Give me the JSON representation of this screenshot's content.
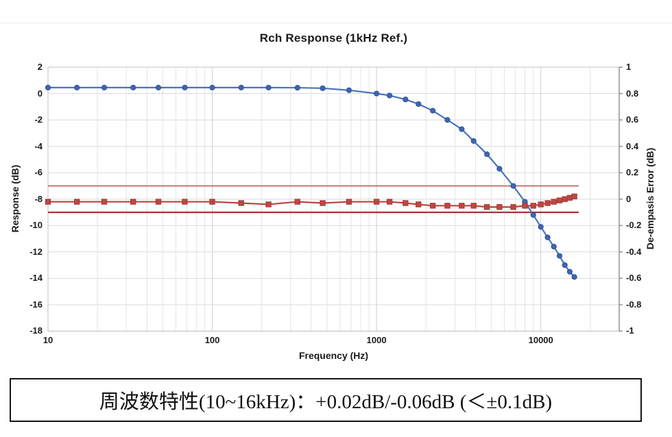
{
  "page": {
    "caption": "周波数特性(10~16kHz)：+0.02dB/-0.06dB (＜±0.1dB)"
  },
  "chart_data": {
    "type": "line",
    "title": "Rch Response (1kHz Ref.)",
    "xlabel": "Frequency (Hz)",
    "ylabel_left": "Response (dB)",
    "ylabel_right": "De-empasis Error (dB)",
    "x_scale": "log",
    "x_range": [
      10,
      30000
    ],
    "x_ticks": [
      {
        "value": 10,
        "label": "10"
      },
      {
        "value": 100,
        "label": "100"
      },
      {
        "value": 1000,
        "label": "1000"
      },
      {
        "value": 10000,
        "label": "10000"
      }
    ],
    "y_left_range": [
      -18,
      2
    ],
    "y_left_tick_step": 2,
    "y_left_ticks": [
      "2",
      "0",
      "-2",
      "-4",
      "-6",
      "-8",
      "-10",
      "-12",
      "-14",
      "-16",
      "-18"
    ],
    "y_right_range": [
      -1,
      1
    ],
    "y_right_tick_step": 0.2,
    "y_right_ticks": [
      "1",
      "0.8",
      "0.6",
      "0.4",
      "0.2",
      "0",
      "-0.2",
      "-0.4",
      "-0.6",
      "-0.8",
      "-1"
    ],
    "grid": true,
    "frequencies": [
      10,
      15,
      22,
      33,
      47,
      68,
      100,
      150,
      220,
      330,
      470,
      680,
      1000,
      1200,
      1500,
      1800,
      2200,
      2700,
      3300,
      3900,
      4700,
      5600,
      6800,
      8000,
      9000,
      10000,
      11000,
      12000,
      13000,
      14000,
      15000,
      16000
    ],
    "series": [
      {
        "name": "response",
        "axis": "left",
        "marker": "circle",
        "line_color": "#4a74b8",
        "marker_fill": "#3f66ad",
        "marker_stroke": "#2e53a0",
        "values": [
          0.45,
          0.45,
          0.45,
          0.45,
          0.45,
          0.45,
          0.45,
          0.45,
          0.45,
          0.44,
          0.4,
          0.25,
          0,
          -0.15,
          -0.45,
          -0.8,
          -1.3,
          -2.0,
          -2.7,
          -3.6,
          -4.6,
          -5.7,
          -7.0,
          -8.2,
          -9.2,
          -10.1,
          -10.9,
          -11.6,
          -12.3,
          -13.0,
          -13.5,
          -13.9
        ]
      },
      {
        "name": "de-emphasis-error",
        "axis": "right",
        "marker": "square",
        "line_color": "#b9423e",
        "marker_fill": "#be4743",
        "marker_stroke": "#a53a37",
        "values": [
          -0.02,
          -0.02,
          -0.02,
          -0.02,
          -0.02,
          -0.02,
          -0.02,
          -0.03,
          -0.04,
          -0.02,
          -0.03,
          -0.02,
          -0.02,
          -0.02,
          -0.03,
          -0.04,
          -0.05,
          -0.05,
          -0.05,
          -0.05,
          -0.06,
          -0.06,
          -0.06,
          -0.05,
          -0.05,
          -0.04,
          -0.03,
          -0.02,
          -0.01,
          0.0,
          0.01,
          0.02
        ]
      }
    ],
    "limit_lines": [
      {
        "name": "upper-limit",
        "axis": "right",
        "value": 0.1,
        "color": "#cd7977",
        "x_start": 10,
        "x_end": 17000
      },
      {
        "name": "lower-limit",
        "axis": "right",
        "value": -0.1,
        "color": "#9c3735",
        "x_start": 10,
        "x_end": 17000
      }
    ],
    "colors": {
      "grid_minor": "#e4e4e4",
      "grid_major": "#cfcfcf",
      "grid_horizontal": "#d9d9d9",
      "plot_border": "#bfbfbf",
      "right_axis": "#8c8c8c"
    }
  }
}
